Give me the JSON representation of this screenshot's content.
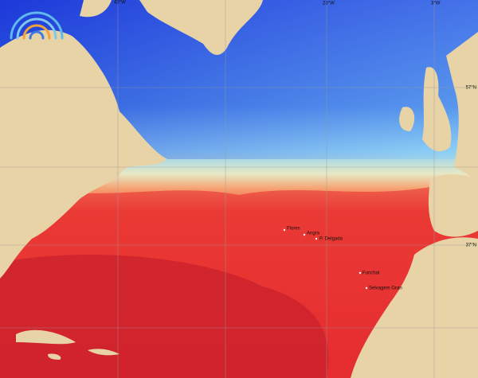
{
  "map": {
    "graticule_labels": {
      "lon": [
        "43°W",
        "23°W",
        "3°W"
      ],
      "lat": [
        "57°N",
        "37°N"
      ]
    },
    "places": [
      "Flores",
      "Angra",
      "P. Delgada",
      "Funchal",
      "Selvagem Gran"
    ]
  }
}
